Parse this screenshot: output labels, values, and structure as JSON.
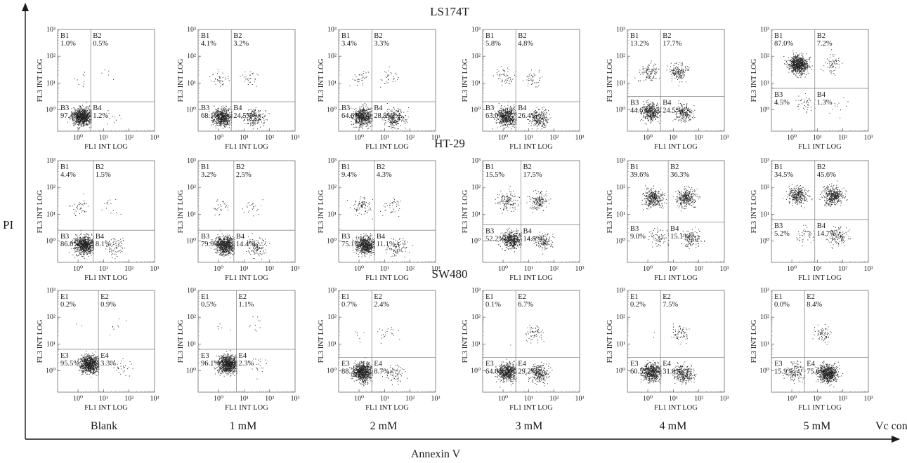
{
  "figure": {
    "y_axis_label": "PI",
    "x_axis_label": "Annexin V",
    "concentration_suffix": "Vc con.",
    "concentrations": [
      "Blank",
      "1 mM",
      "2 mM",
      "3 mM",
      "4 mM",
      "5 mM"
    ]
  },
  "chart_data": {
    "type": "scatter",
    "panel_xlabel": "FL1 INT LOG",
    "panel_ylabel": "FL3 INT LOG",
    "tick_labels": [
      "10⁰",
      "10¹",
      "10²",
      "10³"
    ],
    "axis_range_log10": [
      -0.8,
      3
    ],
    "rows": [
      {
        "cell_line": "LS174T",
        "panels": [
          {
            "gate": [
              0.5,
              0.3
            ],
            "quadrants": [
              {
                "label": "B1",
                "value": "1.0%"
              },
              {
                "label": "B2",
                "value": "0.5%"
              },
              {
                "label": "B3",
                "value": "97.4%"
              },
              {
                "label": "B4",
                "value": "1.2%"
              }
            ]
          },
          {
            "gate": [
              0.5,
              0.3
            ],
            "quadrants": [
              {
                "label": "B1",
                "value": "4.1%"
              },
              {
                "label": "B2",
                "value": "3.2%"
              },
              {
                "label": "B3",
                "value": "68.1%"
              },
              {
                "label": "B4",
                "value": "24.5%"
              }
            ]
          },
          {
            "gate": [
              0.5,
              0.3
            ],
            "quadrants": [
              {
                "label": "B1",
                "value": "3.4%"
              },
              {
                "label": "B2",
                "value": "3.3%"
              },
              {
                "label": "B3",
                "value": "64.6%"
              },
              {
                "label": "B4",
                "value": "28.8%"
              }
            ]
          },
          {
            "gate": [
              0.5,
              0.3
            ],
            "quadrants": [
              {
                "label": "B1",
                "value": "5.8%"
              },
              {
                "label": "B2",
                "value": "4.8%"
              },
              {
                "label": "B3",
                "value": "63.0%"
              },
              {
                "label": "B4",
                "value": "26.4%"
              }
            ]
          },
          {
            "gate": [
              0.5,
              0.5
            ],
            "quadrants": [
              {
                "label": "B1",
                "value": "13.2%"
              },
              {
                "label": "B2",
                "value": "17.7%"
              },
              {
                "label": "B3",
                "value": "44.6%"
              },
              {
                "label": "B4",
                "value": "24.5%"
              }
            ]
          },
          {
            "gate": [
              0.9,
              0.8
            ],
            "quadrants": [
              {
                "label": "B1",
                "value": "87.0%"
              },
              {
                "label": "B2",
                "value": "7.2%"
              },
              {
                "label": "B3",
                "value": "4.5%"
              },
              {
                "label": "B4",
                "value": "1.3%"
              }
            ]
          }
        ]
      },
      {
        "cell_line": "HT-29",
        "panels": [
          {
            "gate": [
              0.6,
              0.4
            ],
            "quadrants": [
              {
                "label": "B1",
                "value": "4.4%"
              },
              {
                "label": "B2",
                "value": "1.5%"
              },
              {
                "label": "B3",
                "value": "86.0%"
              },
              {
                "label": "B4",
                "value": "8.1%"
              }
            ]
          },
          {
            "gate": [
              0.6,
              0.4
            ],
            "quadrants": [
              {
                "label": "B1",
                "value": "3.2%"
              },
              {
                "label": "B2",
                "value": "2.5%"
              },
              {
                "label": "B3",
                "value": "79.9%"
              },
              {
                "label": "B4",
                "value": "14.4%"
              }
            ]
          },
          {
            "gate": [
              0.6,
              0.4
            ],
            "quadrants": [
              {
                "label": "B1",
                "value": "9.4%"
              },
              {
                "label": "B2",
                "value": "4.3%"
              },
              {
                "label": "B3",
                "value": "75.1%"
              },
              {
                "label": "B4",
                "value": "11.1%"
              }
            ]
          },
          {
            "gate": [
              0.7,
              0.6
            ],
            "quadrants": [
              {
                "label": "B1",
                "value": "15.5%"
              },
              {
                "label": "B2",
                "value": "17.5%"
              },
              {
                "label": "B3",
                "value": "52.2%"
              },
              {
                "label": "B4",
                "value": "14.8%"
              }
            ]
          },
          {
            "gate": [
              0.8,
              0.7
            ],
            "quadrants": [
              {
                "label": "B1",
                "value": "39.6%"
              },
              {
                "label": "B2",
                "value": "36.3%"
              },
              {
                "label": "B3",
                "value": "9.0%"
              },
              {
                "label": "B4",
                "value": "15.1%"
              }
            ]
          },
          {
            "gate": [
              0.9,
              0.8
            ],
            "quadrants": [
              {
                "label": "B1",
                "value": "34.5%"
              },
              {
                "label": "B2",
                "value": "45.6%"
              },
              {
                "label": "B3",
                "value": "5.2%"
              },
              {
                "label": "B4",
                "value": "14.7%"
              }
            ]
          }
        ]
      },
      {
        "cell_line": "SW480",
        "panels": [
          {
            "gate": [
              0.8,
              0.8
            ],
            "quadrants": [
              {
                "label": "E1",
                "value": "0.2%"
              },
              {
                "label": "E2",
                "value": "0.9%"
              },
              {
                "label": "E3",
                "value": "95.5%"
              },
              {
                "label": "E4",
                "value": "3.3%"
              }
            ]
          },
          {
            "gate": [
              0.7,
              0.8
            ],
            "quadrants": [
              {
                "label": "E1",
                "value": "0.5%"
              },
              {
                "label": "E2",
                "value": "1.1%"
              },
              {
                "label": "E3",
                "value": "96.1%"
              },
              {
                "label": "E4",
                "value": "2.3%"
              }
            ]
          },
          {
            "gate": [
              0.5,
              0.5
            ],
            "quadrants": [
              {
                "label": "E1",
                "value": "0.7%"
              },
              {
                "label": "E2",
                "value": "2.4%"
              },
              {
                "label": "E3",
                "value": "88.2%"
              },
              {
                "label": "E4",
                "value": "8.7%"
              }
            ]
          },
          {
            "gate": [
              0.5,
              0.5
            ],
            "quadrants": [
              {
                "label": "E1",
                "value": "0.1%"
              },
              {
                "label": "E2",
                "value": "6.7%"
              },
              {
                "label": "E3",
                "value": "64.0%"
              },
              {
                "label": "E4",
                "value": "29.2%"
              }
            ]
          },
          {
            "gate": [
              0.5,
              0.5
            ],
            "quadrants": [
              {
                "label": "E1",
                "value": "0.2%"
              },
              {
                "label": "E2",
                "value": "7.5%"
              },
              {
                "label": "E3",
                "value": "60.5%"
              },
              {
                "label": "E4",
                "value": "31.8%"
              }
            ]
          },
          {
            "gate": [
              0.5,
              0.5
            ],
            "quadrants": [
              {
                "label": "E1",
                "value": "0.0%"
              },
              {
                "label": "E2",
                "value": "8.4%"
              },
              {
                "label": "E3",
                "value": "15.9%"
              },
              {
                "label": "E4",
                "value": "75.6%"
              }
            ]
          }
        ]
      }
    ]
  }
}
